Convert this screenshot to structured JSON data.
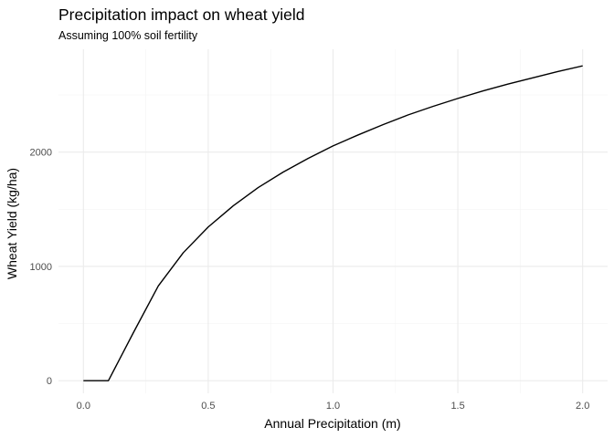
{
  "chart_data": {
    "type": "line",
    "title": "Precipitation impact on wheat yield",
    "subtitle": "Assuming 100% soil fertility",
    "xlabel": "Annual Precipitation (m)",
    "ylabel": "Wheat Yield (kg/ha)",
    "xlim": [
      -0.1,
      2.1
    ],
    "ylim": [
      -110,
      2900
    ],
    "x_ticks": [
      0.0,
      0.5,
      1.0,
      1.5,
      2.0
    ],
    "x_tick_labels": [
      "0.0",
      "0.5",
      "1.0",
      "1.5",
      "2.0"
    ],
    "y_ticks": [
      0,
      1000,
      2000
    ],
    "y_tick_labels": [
      "0",
      "1000",
      "2000"
    ],
    "x_minor": [
      0.25,
      0.75,
      1.25,
      1.75
    ],
    "y_minor": [
      -500,
      500,
      1500,
      2500
    ],
    "grid": true,
    "series": [
      {
        "x": [
          0.0,
          0.1,
          0.2,
          0.3,
          0.4,
          0.5,
          0.6,
          0.7,
          0.8,
          0.9,
          1.0,
          1.1,
          1.2,
          1.3,
          1.4,
          1.5,
          1.6,
          1.7,
          1.8,
          1.9,
          2.0
        ],
        "y": [
          0,
          0,
          420,
          830,
          1120,
          1345,
          1530,
          1690,
          1825,
          1945,
          2055,
          2150,
          2240,
          2325,
          2400,
          2470,
          2535,
          2595,
          2650,
          2705,
          2755
        ],
        "color": "#000000"
      }
    ]
  }
}
